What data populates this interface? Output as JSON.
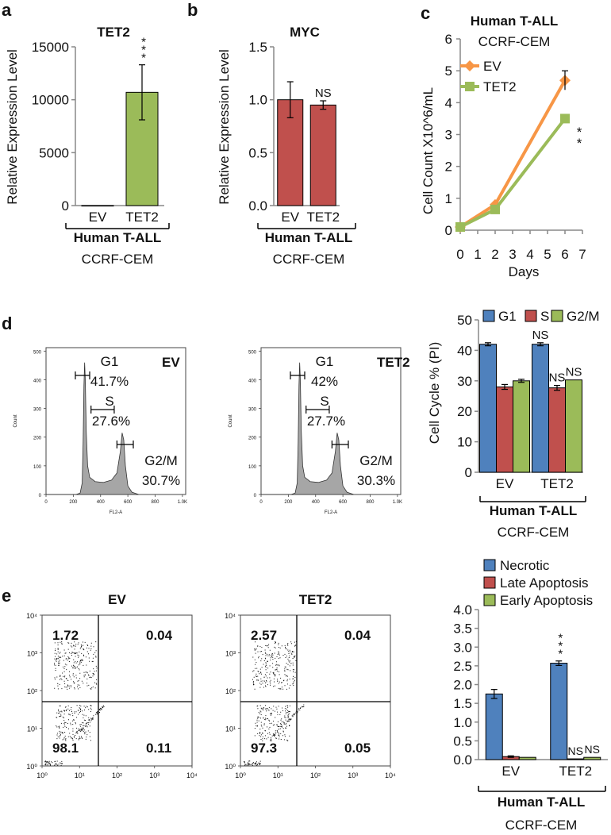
{
  "colors": {
    "tet2_green": "#9bbb59",
    "myc_red": "#c0504d",
    "line_ev": "#f79646",
    "line_tet2": "#9bbb59",
    "blue": "#4f81bd",
    "red": "#c0504d",
    "green": "#9bbb59",
    "hist_fill": "#a6a6a6"
  },
  "panels": {
    "a": "a",
    "b": "b",
    "c": "c",
    "d": "d",
    "e": "e"
  },
  "group": {
    "name": "Human T-ALL",
    "cell": "CCRF-CEM"
  },
  "chart_data": [
    {
      "id": "a",
      "type": "bar",
      "title": "TET2",
      "categories": [
        "EV",
        "TET2"
      ],
      "values": [
        1,
        10700
      ],
      "errors": [
        0,
        2600
      ],
      "ylabel": "Relative Expression Level",
      "ylim": [
        0,
        15000
      ],
      "yticks": [
        "0",
        "5000",
        "10000",
        "15000"
      ],
      "annotations": [
        "",
        "***"
      ]
    },
    {
      "id": "b",
      "type": "bar",
      "title": "MYC",
      "categories": [
        "EV",
        "TET2"
      ],
      "values": [
        1.0,
        0.95
      ],
      "errors": [
        0.17,
        0.04
      ],
      "ylabel": "Relative Expression Level",
      "ylim": [
        0,
        1.5
      ],
      "yticks": [
        "0.0",
        "0.5",
        "1.0",
        "1.5"
      ],
      "annotations": [
        "",
        "NS"
      ]
    },
    {
      "id": "c",
      "type": "line",
      "title": "Human T-ALL",
      "subtitle": "CCRF-CEM",
      "xlabel": "Days",
      "ylabel": "Cell Count X10^6/mL",
      "xlim": [
        0,
        7
      ],
      "ylim": [
        0,
        6
      ],
      "xticks": [
        "0",
        "1",
        "2",
        "3",
        "4",
        "5",
        "6",
        "7"
      ],
      "yticks": [
        "0",
        "1",
        "2",
        "3",
        "4",
        "5",
        "6"
      ],
      "x": [
        0,
        2,
        6
      ],
      "series": [
        {
          "name": "EV",
          "values": [
            0.1,
            0.8,
            4.7
          ],
          "errors": [
            0,
            0,
            0.3
          ]
        },
        {
          "name": "TET2",
          "values": [
            0.1,
            0.65,
            3.5
          ],
          "errors": [
            0,
            0,
            0
          ]
        }
      ],
      "annotation": "**"
    },
    {
      "id": "d-flow",
      "type": "histogram",
      "xlabel": "FL2-A",
      "ylabel": "Count",
      "xticks": [
        "0",
        "200",
        "400",
        "600",
        "800",
        "1.0K"
      ],
      "yticks": [
        "0",
        "100",
        "200",
        "300",
        "400",
        "500"
      ],
      "plots": [
        {
          "label": "EV",
          "g1": "41.7%",
          "s": "27.6%",
          "g2m": "30.7%"
        },
        {
          "label": "TET2",
          "g1": "42%",
          "s": "27.7%",
          "g2m": "30.3%"
        }
      ],
      "gate_labels": {
        "g1": "G1",
        "s": "S",
        "g2m": "G2/M"
      }
    },
    {
      "id": "d-bar",
      "type": "bar",
      "ylabel": "Cell Cycle % (PI)",
      "categories": [
        "EV",
        "TET2"
      ],
      "ylim": [
        0,
        50
      ],
      "yticks": [
        "0",
        "10",
        "20",
        "30",
        "40",
        "50"
      ],
      "series": [
        {
          "name": "G1",
          "values": [
            42,
            42
          ],
          "errors": [
            0.5,
            0.5
          ],
          "annotations": [
            "",
            "NS"
          ]
        },
        {
          "name": "S",
          "values": [
            28,
            27.7
          ],
          "errors": [
            0.8,
            0.8
          ],
          "annotations": [
            "",
            "NS"
          ]
        },
        {
          "name": "G2/M",
          "values": [
            30,
            30.3
          ],
          "errors": [
            0.5,
            0
          ],
          "annotations": [
            "",
            "NS"
          ]
        }
      ]
    },
    {
      "id": "e-flow",
      "type": "scatter",
      "xticks": [
        "10⁰",
        "10¹",
        "10²",
        "10³",
        "10⁴"
      ],
      "yticks": [
        "10⁰",
        "10¹",
        "10²",
        "10³",
        "10⁴"
      ],
      "plots": [
        {
          "label": "EV",
          "quadrants": {
            "ul": "1.72",
            "ur": "0.04",
            "ll": "98.1",
            "lr": "0.11"
          }
        },
        {
          "label": "TET2",
          "quadrants": {
            "ul": "2.57",
            "ur": "0.04",
            "ll": "97.3",
            "lr": "0.05"
          }
        }
      ]
    },
    {
      "id": "e-bar",
      "type": "bar",
      "categories": [
        "EV",
        "TET2"
      ],
      "ylim": [
        0,
        4.0
      ],
      "yticks": [
        "0.0",
        "0.5",
        "1.0",
        "1.5",
        "2.0",
        "2.5",
        "3.0",
        "3.5",
        "4.0"
      ],
      "series": [
        {
          "name": "Necrotic",
          "values": [
            1.75,
            2.57
          ],
          "errors": [
            0.12,
            0.06
          ],
          "annotations": [
            "",
            "***"
          ]
        },
        {
          "name": "Late Apoptosis",
          "values": [
            0.08,
            0.02
          ],
          "errors": [
            0.02,
            0
          ],
          "annotations": [
            "",
            "NS"
          ]
        },
        {
          "name": "Early Apoptosis",
          "values": [
            0.06,
            0.06
          ],
          "errors": [
            0,
            0
          ],
          "annotations": [
            "",
            "NS"
          ]
        }
      ]
    }
  ]
}
